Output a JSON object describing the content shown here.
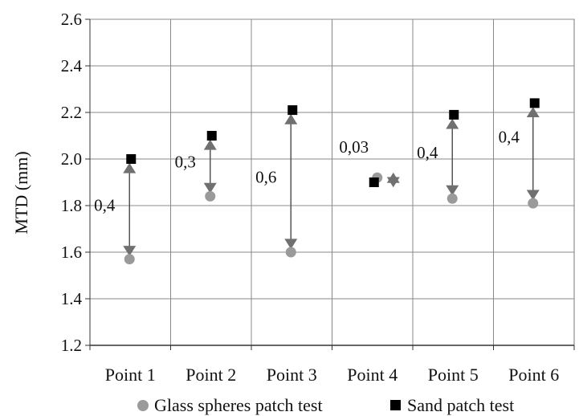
{
  "chart_data": {
    "type": "scatter",
    "categories": [
      "Point 1",
      "Point 2",
      "Point 3",
      "Point 4",
      "Point 5",
      "Point 6"
    ],
    "ylabel": "MTD (mm)",
    "ylim": [
      1.2,
      2.6
    ],
    "yticks": [
      1.2,
      1.4,
      1.6,
      1.8,
      2.0,
      2.2,
      2.4,
      2.6
    ],
    "ytick_labels": [
      "1.2",
      "1.4",
      "1.6",
      "1.8",
      "2.0",
      "2.2",
      "2.4",
      "2.6"
    ],
    "grid": true,
    "legend_position": "bottom",
    "series": [
      {
        "name": "Glass spheres patch test",
        "marker": "circle",
        "color": "#9a9a9a",
        "values": [
          1.57,
          1.84,
          1.6,
          1.92,
          1.83,
          1.81
        ]
      },
      {
        "name": "Sand patch test",
        "marker": "square",
        "color": "#000000",
        "values": [
          2.0,
          2.1,
          2.21,
          1.9,
          2.19,
          2.24
        ]
      }
    ],
    "differences": {
      "labels": [
        "0,4",
        "0,3",
        "0,6",
        "0,03",
        "0,4",
        "0,4"
      ]
    }
  }
}
